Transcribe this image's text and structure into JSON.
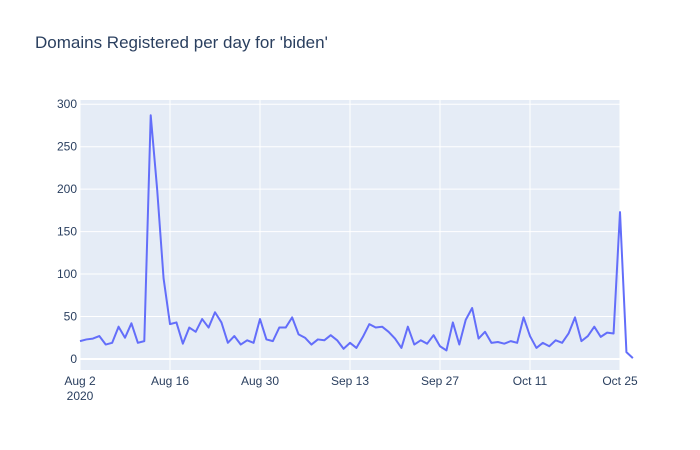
{
  "chart_data": {
    "type": "line",
    "title": "Domains Registered per day for 'biden'",
    "xlabel": "",
    "ylabel": "",
    "x_start": "2020-08-02",
    "x_end": "2020-10-25",
    "xlim": [
      "2020-08-02",
      "2020-10-25"
    ],
    "ylim": [
      -13,
      305
    ],
    "x_ticks": [
      {
        "date": "2020-08-02",
        "label": "Aug 2",
        "sublabel": "2020"
      },
      {
        "date": "2020-08-16",
        "label": "Aug 16"
      },
      {
        "date": "2020-08-30",
        "label": "Aug 30"
      },
      {
        "date": "2020-09-13",
        "label": "Sep 13"
      },
      {
        "date": "2020-09-27",
        "label": "Sep 27"
      },
      {
        "date": "2020-10-11",
        "label": "Oct 11"
      },
      {
        "date": "2020-10-25",
        "label": "Oct 25"
      }
    ],
    "y_ticks": [
      0,
      50,
      100,
      150,
      200,
      250,
      300
    ],
    "grid": true,
    "colors": {
      "line": "#636efa",
      "plot_bg": "#e5ecf6",
      "grid": "#ffffff",
      "text": "#2a3f5f"
    },
    "series": [
      {
        "values": [
          21,
          23,
          24,
          27,
          17,
          19,
          38,
          25,
          42,
          19,
          21,
          287,
          200,
          95,
          41,
          43,
          18,
          37,
          32,
          47,
          37,
          55,
          43,
          19,
          27,
          17,
          22,
          19,
          47,
          23,
          21,
          37,
          37,
          49,
          29,
          25,
          17,
          23,
          22,
          28,
          22,
          12,
          19,
          13,
          26,
          41,
          37,
          38,
          32,
          24,
          13,
          38,
          17,
          22,
          18,
          28,
          15,
          10,
          43,
          17,
          46,
          60,
          24,
          32,
          19,
          20,
          18,
          21,
          19,
          49,
          27,
          13,
          19,
          15,
          22,
          19,
          30,
          49,
          21,
          27,
          38,
          26,
          31,
          30,
          173,
          8,
          1
        ]
      }
    ]
  }
}
